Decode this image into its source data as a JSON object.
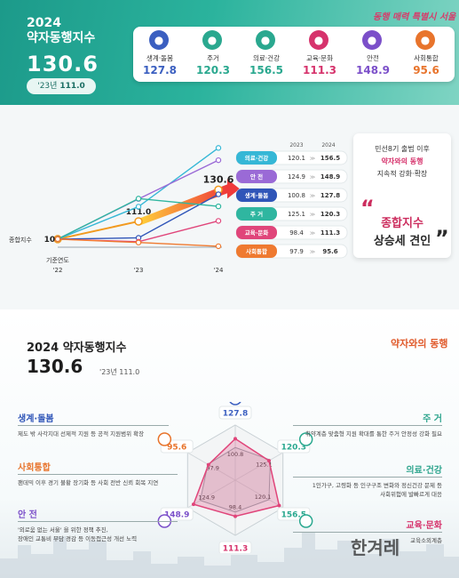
{
  "top": {
    "title_line1": "2024",
    "title_line2": "약자동행지수",
    "score": "130.6",
    "prev_label": "'23년",
    "prev_value": "111.0",
    "slogan": "동행 매력 특별시 서울",
    "cards": [
      {
        "name": "생계·돌봄",
        "value": "127.8",
        "color": "#3b5fc0",
        "icon": "hand-heart-icon"
      },
      {
        "name": "주거",
        "value": "120.3",
        "color": "#2aa88f",
        "icon": "house-icon"
      },
      {
        "name": "의료·건강",
        "value": "156.5",
        "color": "#2aa88f",
        "icon": "medical-icon"
      },
      {
        "name": "교육·문화",
        "value": "111.3",
        "color": "#d6336c",
        "icon": "book-icon"
      },
      {
        "name": "안전",
        "value": "148.9",
        "color": "#7b4fc9",
        "icon": "shield-icon"
      },
      {
        "name": "사회통합",
        "value": "95.6",
        "color": "#e8742c",
        "icon": "people-icon"
      }
    ],
    "total_label": "종합지수",
    "base_label": "기준연도",
    "year_labels": [
      "'22",
      "'23",
      "'24"
    ],
    "col_2023": "2023",
    "col_2024": "2024",
    "right_box": {
      "line1": "민선8기 출범 이후",
      "line2": "약자와의 동행",
      "line3": "지속적 강화·확장",
      "big1": "종합지수",
      "big2": "상승세 견인"
    }
  },
  "chart_data": [
    {
      "type": "line",
      "x": [
        "'22",
        "'23",
        "'24"
      ],
      "series": [
        {
          "name": "종합지수",
          "values": [
            100,
            111.0,
            130.6
          ],
          "color": "#f29a1f"
        },
        {
          "name": "의료·건강",
          "values": [
            100,
            120.1,
            156.5
          ],
          "color": "#35b7d6"
        },
        {
          "name": "안 전",
          "values": [
            100,
            124.9,
            148.9
          ],
          "color": "#9a6ad6"
        },
        {
          "name": "생계·돌봄",
          "values": [
            100,
            100.8,
            127.8
          ],
          "color": "#2f55b8"
        },
        {
          "name": "주 거",
          "values": [
            100,
            125.1,
            120.3
          ],
          "color": "#2fb6a0"
        },
        {
          "name": "교육·문화",
          "values": [
            100,
            98.4,
            111.3
          ],
          "color": "#e0457a"
        },
        {
          "name": "사회통합",
          "values": [
            100,
            97.9,
            95.6
          ],
          "color": "#ef7a30"
        }
      ],
      "ylim": [
        95,
        160
      ]
    },
    {
      "type": "radar",
      "categories": [
        "생계·돌봄",
        "주거",
        "의료·건강",
        "교육·문화",
        "안전",
        "사회통합"
      ],
      "series": [
        {
          "name": "2023",
          "values": [
            100.8,
            125.1,
            120.1,
            98.4,
            124.9,
            97.9
          ]
        },
        {
          "name": "2024",
          "values": [
            127.8,
            120.3,
            156.5,
            111.3,
            148.9,
            95.6
          ]
        }
      ]
    }
  ],
  "bottom": {
    "title": "2024 약자동행지수",
    "score": "130.6",
    "prev_text": "'23년 111.0",
    "brand": "약자와의 동행",
    "watermark": "한겨레",
    "categories": [
      {
        "label": "생계·돌봄",
        "desc1": "제도 밖 사각지대 선제적 지원 등 공적 지원범위 확장",
        "desc2": "",
        "color": "#2f55b8"
      },
      {
        "label": "주 거",
        "desc1": "취약계층 맞춤형 지원 확대를 통한 주거 안정성 강화 필요",
        "desc2": "",
        "color": "#2fa58e"
      },
      {
        "label": "사회통합",
        "desc1": "팬데믹 이후 경기 불황 장기화 등 사회 전반 신뢰 회복 지연",
        "desc2": "",
        "color": "#e8742c"
      },
      {
        "label": "의료·건강",
        "desc1": "1인가구, 고령화 등 인구구조 변화와 정신건강 문제 등",
        "desc2": "사회위험에 발빠르게 대응",
        "color": "#2fa58e"
      },
      {
        "label": "안 전",
        "desc1": "'외로움 없는 서울' 을 위한 정책 추진,",
        "desc2": "장애인 교통비 부담 경감 등 이동접근성 개선 노력",
        "color": "#7b4fc9"
      },
      {
        "label": "교육·문화",
        "desc1": "교육소외계층",
        "desc2": "",
        "color": "#d6336c"
      }
    ]
  }
}
